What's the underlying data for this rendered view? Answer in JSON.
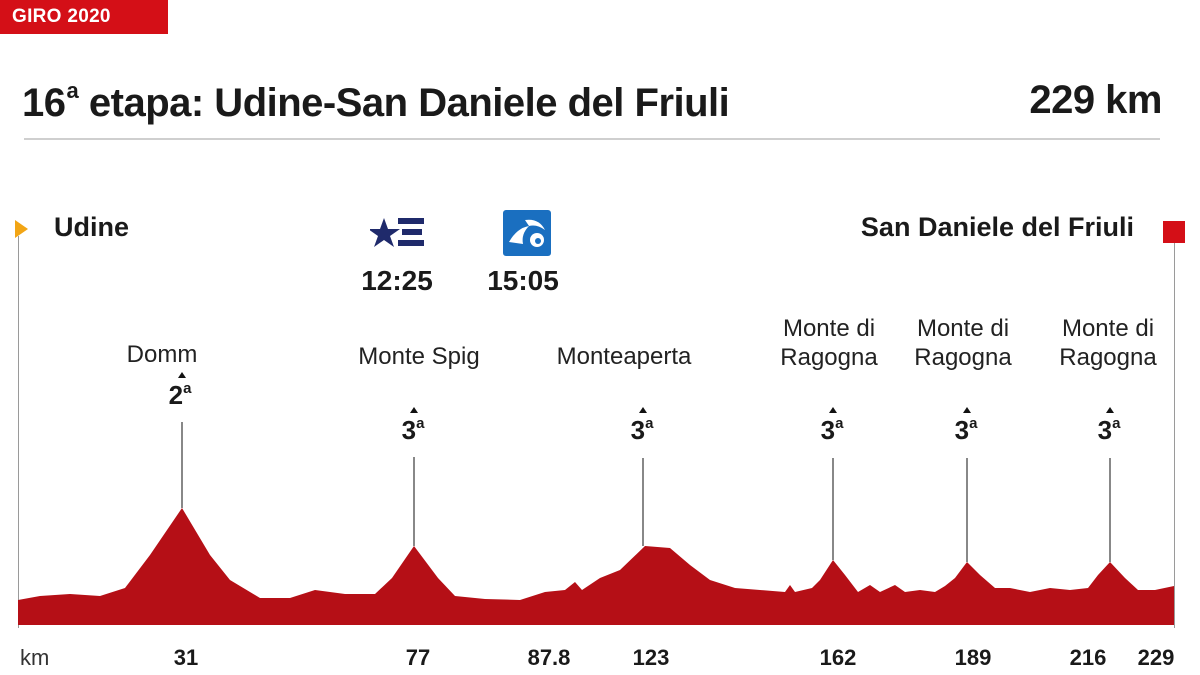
{
  "header": {
    "tag": "GIRO 2020",
    "stage_number": "16",
    "stage_ordinal": "a",
    "stage_title": "etapa: Udine-San Daniele del Friuli",
    "distance": "229 km"
  },
  "route": {
    "start": "Udine",
    "finish": "San Daniele del Friuli"
  },
  "broadcasts": [
    {
      "icon": "eurosport-logo-icon",
      "time": "12:25"
    },
    {
      "icon": "teledeporte-logo-icon",
      "time": "15:05"
    }
  ],
  "climbs": [
    {
      "name_lines": [
        "Domm"
      ],
      "category": "2",
      "category_ordinal": "a",
      "km": "31"
    },
    {
      "name_lines": [
        "Monte Spig"
      ],
      "category": "3",
      "category_ordinal": "a",
      "km": "77"
    },
    {
      "name_lines": [
        "Monteaperta"
      ],
      "category": "3",
      "category_ordinal": "a",
      "km": "123"
    },
    {
      "name_lines": [
        "Monte di",
        "Ragogna"
      ],
      "category": "3",
      "category_ordinal": "a",
      "km": "162"
    },
    {
      "name_lines": [
        "Monte di",
        "Ragogna"
      ],
      "category": "3",
      "category_ordinal": "a",
      "km": "189"
    },
    {
      "name_lines": [
        "Monte di",
        "Ragogna"
      ],
      "category": "3",
      "category_ordinal": "a",
      "km": "216"
    }
  ],
  "km_axis": {
    "unit": "km",
    "labels": [
      "31",
      "77",
      "87.8",
      "123",
      "162",
      "189",
      "216",
      "229"
    ]
  },
  "colors": {
    "accent": "#d40f17",
    "profile_fill": "#b50f16",
    "start_flag": "#f2a515"
  }
}
